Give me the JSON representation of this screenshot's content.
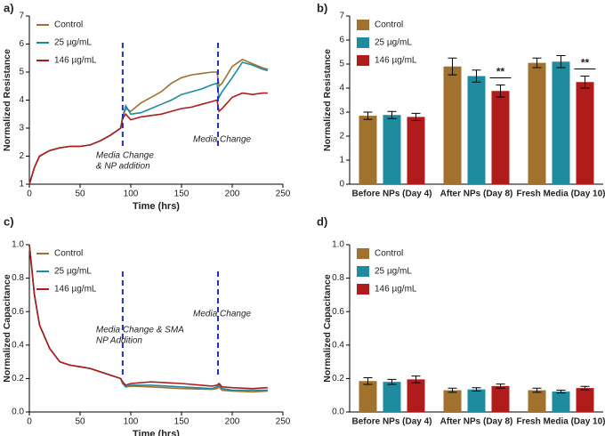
{
  "chart_data": [
    {
      "type": "line",
      "panel": "a)",
      "xlabel": "Time (hrs)",
      "ylabel": "Normalized Resistance",
      "xlim": [
        0,
        250
      ],
      "ylim": [
        1,
        7
      ],
      "xticks": [
        0,
        50,
        100,
        150,
        200,
        250
      ],
      "yticks": [
        1,
        2,
        3,
        4,
        5,
        6,
        7
      ],
      "legend": "upper left",
      "x": [
        0,
        5,
        10,
        20,
        30,
        40,
        50,
        60,
        70,
        80,
        90,
        92,
        95,
        100,
        110,
        120,
        130,
        140,
        150,
        160,
        170,
        180,
        185,
        187,
        190,
        200,
        210,
        220,
        230,
        235
      ],
      "series": [
        {
          "name": "Control",
          "color": "#a0722e",
          "values": [
            1.0,
            1.6,
            2.0,
            2.2,
            2.3,
            2.35,
            2.35,
            2.4,
            2.55,
            2.75,
            3.0,
            3.4,
            3.7,
            3.6,
            3.9,
            4.1,
            4.3,
            4.6,
            4.8,
            4.9,
            4.95,
            5.0,
            5.0,
            4.5,
            4.6,
            5.2,
            5.45,
            5.3,
            5.15,
            5.1
          ]
        },
        {
          "name": "25 µg/mL",
          "color": "#1e8b9f",
          "values": [
            1.0,
            1.6,
            2.0,
            2.2,
            2.3,
            2.35,
            2.35,
            2.4,
            2.55,
            2.75,
            3.0,
            3.4,
            3.8,
            3.5,
            3.55,
            3.7,
            3.85,
            4.0,
            4.2,
            4.3,
            4.4,
            4.55,
            4.6,
            4.1,
            4.3,
            4.8,
            5.35,
            5.25,
            5.1,
            5.05
          ]
        },
        {
          "name": "146  µg/mL",
          "color": "#b01c1c",
          "values": [
            1.0,
            1.6,
            2.0,
            2.2,
            2.3,
            2.35,
            2.35,
            2.4,
            2.55,
            2.75,
            3.0,
            3.35,
            3.5,
            3.3,
            3.4,
            3.45,
            3.5,
            3.6,
            3.7,
            3.75,
            3.85,
            3.95,
            4.0,
            3.6,
            3.7,
            4.1,
            4.25,
            4.2,
            4.25,
            4.25
          ]
        }
      ],
      "vlines": [
        {
          "x": 92,
          "label": [
            "Media Change",
            "& NP addition"
          ]
        },
        {
          "x": 186,
          "label": [
            "Media Change"
          ]
        }
      ]
    },
    {
      "type": "bar",
      "panel": "b)",
      "ylabel": "Normalized Resistance",
      "ylim": [
        0,
        7
      ],
      "yticks": [
        0,
        1,
        2,
        3,
        4,
        5,
        6,
        7
      ],
      "legend": "upper left",
      "categories": [
        "Before NPs (Day 4)",
        "After NPs (Day 8)",
        "Fresh Media (Day 10)"
      ],
      "series": [
        {
          "name": "Control",
          "color": "#a0722e",
          "values": [
            2.85,
            4.9,
            5.05
          ],
          "errors": [
            0.15,
            0.35,
            0.2
          ]
        },
        {
          "name": "25 µg/mL",
          "color": "#1e8b9f",
          "values": [
            2.88,
            4.5,
            5.1
          ],
          "errors": [
            0.15,
            0.25,
            0.25
          ]
        },
        {
          "name": "146  µg/mL",
          "color": "#b01c1c",
          "values": [
            2.8,
            3.88,
            4.25
          ],
          "errors": [
            0.15,
            0.25,
            0.25
          ]
        }
      ],
      "significance": [
        {
          "label": "**",
          "category": "After NPs (Day 8)"
        },
        {
          "label": "**",
          "category": "Fresh Media (Day 10)"
        }
      ]
    },
    {
      "type": "line",
      "panel": "c)",
      "xlabel": "Time (hrs)",
      "ylabel": "Normalized Capacitance",
      "xlim": [
        0,
        250
      ],
      "ylim": [
        0,
        1
      ],
      "xticks": [
        0,
        50,
        100,
        150,
        200,
        250
      ],
      "yticks": [
        {
          "value": 0,
          "label": "0.0"
        },
        0.2,
        0.4,
        0.6,
        0.8,
        {
          "value": 1,
          "label": "1.0"
        }
      ],
      "legend": "upper left",
      "x": [
        0,
        5,
        10,
        20,
        30,
        40,
        50,
        60,
        70,
        80,
        90,
        92,
        95,
        100,
        120,
        150,
        180,
        185,
        187,
        190,
        200,
        220,
        235
      ],
      "series": [
        {
          "name": "Control",
          "color": "#a0722e",
          "values": [
            1.0,
            0.7,
            0.52,
            0.38,
            0.3,
            0.28,
            0.27,
            0.26,
            0.24,
            0.22,
            0.2,
            0.17,
            0.15,
            0.155,
            0.15,
            0.14,
            0.135,
            0.14,
            0.15,
            0.13,
            0.125,
            0.12,
            0.125
          ]
        },
        {
          "name": "25 µg/mL",
          "color": "#1e8b9f",
          "values": [
            1.0,
            0.7,
            0.52,
            0.38,
            0.3,
            0.28,
            0.27,
            0.26,
            0.24,
            0.22,
            0.2,
            0.17,
            0.15,
            0.16,
            0.16,
            0.15,
            0.14,
            0.15,
            0.16,
            0.14,
            0.13,
            0.13,
            0.13
          ]
        },
        {
          "name": "146  µg/mL",
          "color": "#b01c1c",
          "values": [
            1.0,
            0.7,
            0.52,
            0.38,
            0.3,
            0.28,
            0.27,
            0.26,
            0.24,
            0.22,
            0.2,
            0.18,
            0.16,
            0.17,
            0.18,
            0.17,
            0.155,
            0.16,
            0.17,
            0.15,
            0.145,
            0.14,
            0.145
          ]
        }
      ],
      "vlines": [
        {
          "x": 92,
          "label": [
            "Media Change & SMA",
            "NP Addition"
          ]
        },
        {
          "x": 186,
          "label": [
            "Media Change"
          ]
        }
      ]
    },
    {
      "type": "bar",
      "panel": "d)",
      "ylabel": "Normalized Capacitance",
      "ylim": [
        0,
        1
      ],
      "yticks": [
        {
          "value": 0,
          "label": "0.0"
        },
        0.2,
        0.4,
        0.6,
        0.8,
        {
          "value": 1,
          "label": "1.0"
        }
      ],
      "legend": "upper left",
      "categories": [
        "Before NPs (Day 4)",
        "After NPs (Day 8)",
        "Fresh Media (Day 10)"
      ],
      "series": [
        {
          "name": "Control",
          "color": "#a0722e",
          "values": [
            0.185,
            0.13,
            0.13
          ],
          "errors": [
            0.02,
            0.012,
            0.012
          ]
        },
        {
          "name": "25 µg/mL",
          "color": "#1e8b9f",
          "values": [
            0.18,
            0.135,
            0.122
          ],
          "errors": [
            0.015,
            0.01,
            0.008
          ]
        },
        {
          "name": "146  µg/mL",
          "color": "#b01c1c",
          "values": [
            0.195,
            0.155,
            0.143
          ],
          "errors": [
            0.02,
            0.012,
            0.01
          ]
        }
      ]
    }
  ]
}
